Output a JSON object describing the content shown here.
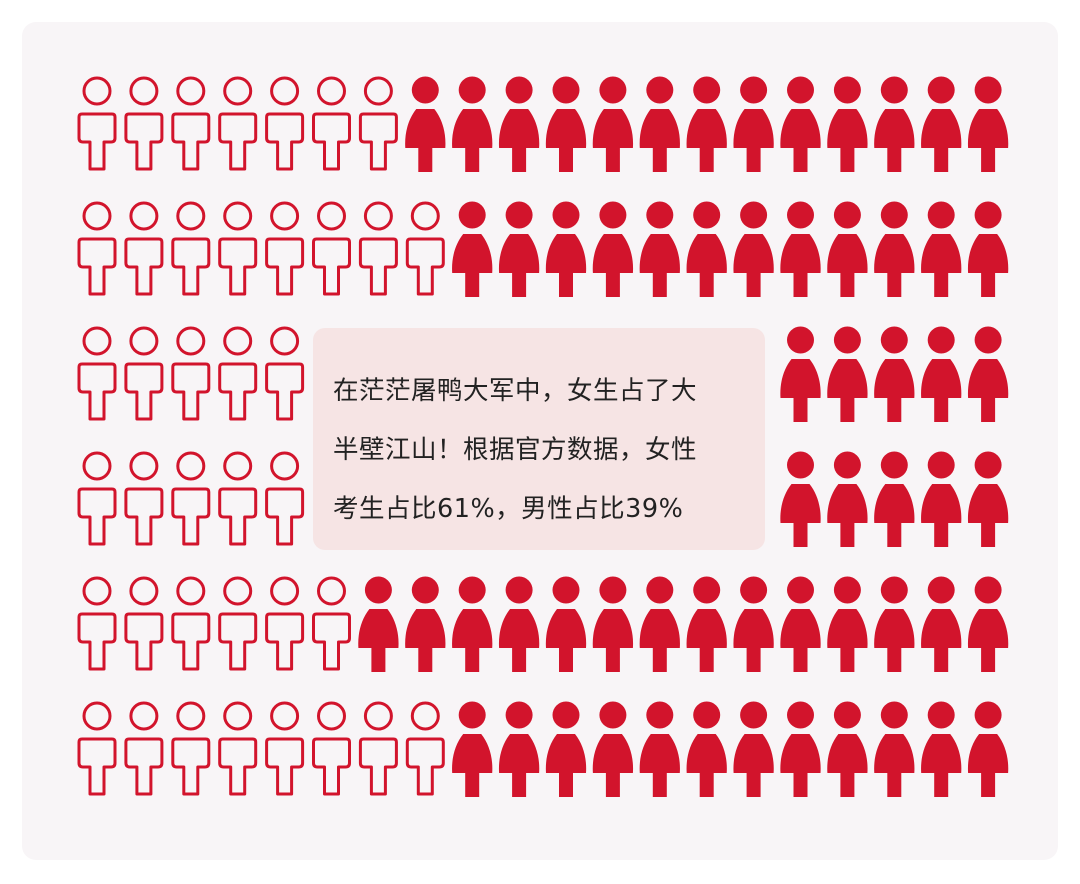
{
  "chart_data": {
    "type": "pictogram",
    "colors": {
      "female": "#d2142c",
      "male_outline": "#d2142c",
      "panel": "#f8f5f7",
      "callout": "#f6e4e4"
    },
    "icons": {
      "male": "male-person-outline-icon",
      "female": "female-person-filled-icon"
    },
    "series": [
      {
        "icon": "male-person-outline-icon",
        "value": 39
      },
      {
        "icon": "female-person-filled-icon",
        "value": 61
      }
    ],
    "rows": [
      {
        "male": 7,
        "female": 13
      },
      {
        "male": 8,
        "female": 12
      },
      {
        "male": 5,
        "female": 5
      },
      {
        "male": 5,
        "female": 5
      },
      {
        "male": 6,
        "female": 14
      },
      {
        "male": 8,
        "female": 12
      }
    ],
    "annotation": {
      "lines": [
        "在茫茫屠鸭大军中，女生占了大",
        "半壁江山！根据官方数据，女性",
        "考生占比61%，男性占比39%"
      ]
    }
  }
}
